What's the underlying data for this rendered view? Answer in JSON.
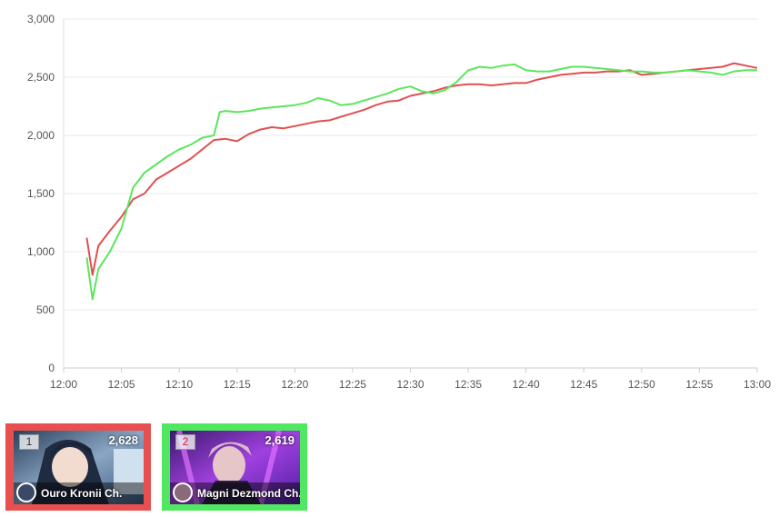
{
  "chart_data": {
    "type": "line",
    "title": "",
    "xlabel": "",
    "ylabel": "",
    "ylim": [
      0,
      3000
    ],
    "xlim": [
      "12:00",
      "13:00"
    ],
    "y_ticks": [
      "0",
      "500",
      "1,000",
      "1,500",
      "2,000",
      "2,500",
      "3,000"
    ],
    "x_ticks": [
      "12:00",
      "12:05",
      "12:10",
      "12:15",
      "12:20",
      "12:25",
      "12:30",
      "12:35",
      "12:40",
      "12:45",
      "12:50",
      "12:55",
      "13:00"
    ],
    "grid": true,
    "legend": "none",
    "series": [
      {
        "color": "#e05050",
        "x": [
          "12:02",
          "12:02:30",
          "12:03",
          "12:04",
          "12:05",
          "12:06",
          "12:07",
          "12:08",
          "12:09",
          "12:10",
          "12:11",
          "12:12",
          "12:13",
          "12:14",
          "12:15",
          "12:16",
          "12:17",
          "12:18",
          "12:19",
          "12:20",
          "12:21",
          "12:22",
          "12:23",
          "12:24",
          "12:25",
          "12:26",
          "12:27",
          "12:28",
          "12:29",
          "12:30",
          "12:31",
          "12:32",
          "12:33",
          "12:34",
          "12:35",
          "12:36",
          "12:37",
          "12:38",
          "12:39",
          "12:40",
          "12:41",
          "12:42",
          "12:43",
          "12:44",
          "12:45",
          "12:46",
          "12:47",
          "12:48",
          "12:49",
          "12:50",
          "12:51",
          "12:52",
          "12:53",
          "12:54",
          "12:55",
          "12:56",
          "12:57",
          "12:58",
          "12:59",
          "13:00"
        ],
        "y": [
          1120,
          800,
          1050,
          1180,
          1300,
          1450,
          1500,
          1620,
          1680,
          1740,
          1800,
          1880,
          1960,
          1970,
          1950,
          2010,
          2050,
          2070,
          2060,
          2080,
          2100,
          2120,
          2130,
          2160,
          2190,
          2220,
          2260,
          2290,
          2300,
          2340,
          2360,
          2380,
          2410,
          2430,
          2440,
          2440,
          2430,
          2440,
          2450,
          2450,
          2480,
          2500,
          2520,
          2530,
          2540,
          2540,
          2550,
          2550,
          2560,
          2520,
          2530,
          2540,
          2550,
          2560,
          2570,
          2580,
          2590,
          2620,
          2600,
          2580
        ]
      },
      {
        "color": "#5ce65c",
        "x": [
          "12:02",
          "12:02:30",
          "12:03",
          "12:04",
          "12:05",
          "12:06",
          "12:07",
          "12:08",
          "12:09",
          "12:10",
          "12:11",
          "12:12",
          "12:13",
          "12:13:30",
          "12:14",
          "12:15",
          "12:16",
          "12:17",
          "12:18",
          "12:19",
          "12:20",
          "12:21",
          "12:22",
          "12:23",
          "12:24",
          "12:25",
          "12:26",
          "12:27",
          "12:28",
          "12:29",
          "12:30",
          "12:31",
          "12:32",
          "12:33",
          "12:34",
          "12:35",
          "12:36",
          "12:37",
          "12:38",
          "12:39",
          "12:40",
          "12:41",
          "12:42",
          "12:43",
          "12:44",
          "12:45",
          "12:46",
          "12:47",
          "12:48",
          "12:49",
          "12:50",
          "12:51",
          "12:52",
          "12:53",
          "12:54",
          "12:55",
          "12:56",
          "12:57",
          "12:58",
          "12:59",
          "13:00"
        ],
        "y": [
          950,
          590,
          850,
          1000,
          1200,
          1550,
          1680,
          1750,
          1820,
          1880,
          1920,
          1980,
          2000,
          2200,
          2210,
          2200,
          2210,
          2230,
          2240,
          2250,
          2260,
          2280,
          2320,
          2300,
          2260,
          2270,
          2300,
          2330,
          2360,
          2400,
          2420,
          2380,
          2360,
          2390,
          2460,
          2560,
          2590,
          2580,
          2600,
          2610,
          2560,
          2550,
          2550,
          2570,
          2590,
          2590,
          2580,
          2570,
          2560,
          2550,
          2550,
          2540,
          2540,
          2550,
          2560,
          2550,
          2540,
          2520,
          2550,
          2560,
          2560
        ]
      }
    ]
  },
  "cards": [
    {
      "rank": "1",
      "count": "2,628",
      "name": "Ouro Kronii Ch.",
      "frame_color": "#e85050"
    },
    {
      "rank": "2",
      "count": "2,619",
      "name": "Magni Dezmond Ch.",
      "frame_color": "#50e860"
    }
  ]
}
